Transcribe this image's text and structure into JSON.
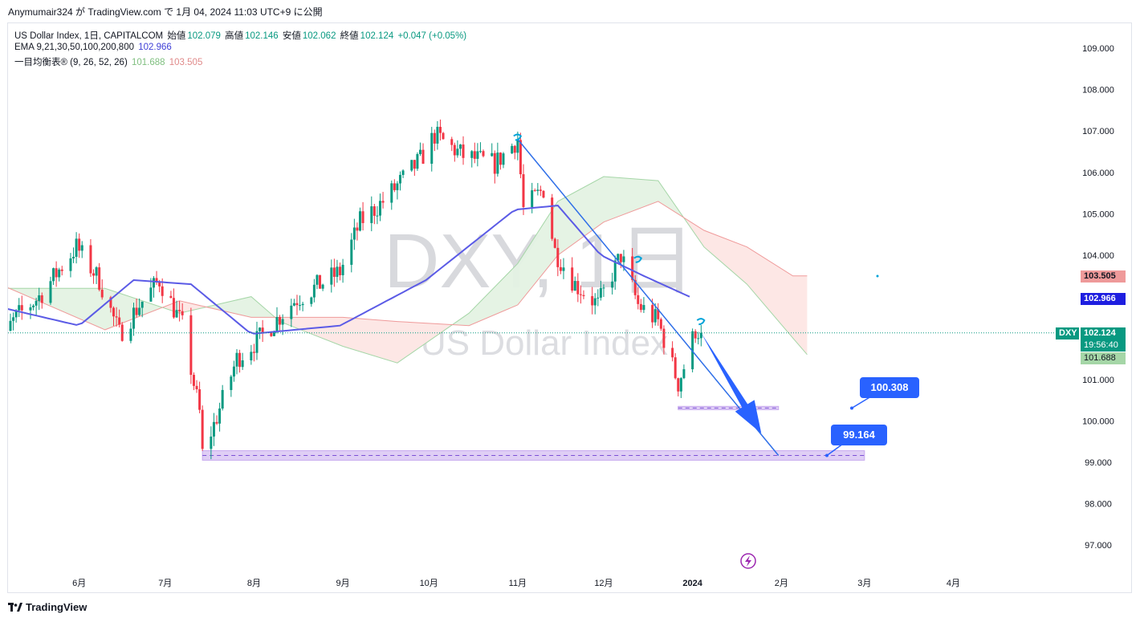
{
  "header": {
    "author_line": "Anymumair324 が TradingView.com で 1月 04, 2024 11:03 UTC+9 に公開"
  },
  "legend": {
    "line1_name": "US Dollar Index, 1日, CAPITALCOM",
    "open_label": "始値",
    "open_value": "102.079",
    "high_label": "高値",
    "high_value": "102.146",
    "low_label": "安値",
    "low_value": "102.062",
    "close_label": "終値",
    "close_value": "102.124",
    "change": "+0.047 (+0.05%)",
    "ema_label": "EMA 9,21,30,50,100,200,800",
    "ema_value": "102.966",
    "ichimoku_label": "一目均衡表® (9, 26, 52, 26)",
    "ichimoku_value1": "101.688",
    "ichimoku_value2": "103.505"
  },
  "watermark": {
    "symbol": "DXY, 1日",
    "name": "US Dollar Index"
  },
  "price_tags": {
    "span_b": "103.505",
    "ema": "102.966",
    "symbol": "DXY",
    "last": "102.124",
    "countdown": "19:56:40",
    "span_a": "101.688"
  },
  "callouts": {
    "upper": "100.308",
    "lower": "99.164"
  },
  "footer": {
    "brand": "TradingView"
  },
  "colors": {
    "up": "#089981",
    "down": "#f23645",
    "ema": "#5b5be6",
    "cloud_bull": "#e4f2e3",
    "cloud_bear": "#fde6e4",
    "callout": "#2962ff",
    "zone": "#d9c5f3"
  },
  "chart_data": {
    "type": "candlestick",
    "y_axis_ticks": [
      109,
      108,
      107,
      106,
      105,
      104,
      101,
      100,
      99,
      98,
      97
    ],
    "y_axis_labels": [
      "109.000",
      "108.000",
      "107.000",
      "106.000",
      "105.000",
      "104.000",
      "101.000",
      "100.000",
      "99.000",
      "98.000",
      "97.000"
    ],
    "x_axis_labels": [
      "6月",
      "7月",
      "8月",
      "9月",
      "10月",
      "11月",
      "12月",
      "2024",
      "2月",
      "3月",
      "4月"
    ],
    "ylim": [
      96.0,
      110.0
    ],
    "close_path": [
      [
        "2023-05-01",
        101.6
      ],
      [
        "2023-05-10",
        102.5
      ],
      [
        "2023-05-18",
        103.0
      ],
      [
        "2023-05-31",
        104.2
      ],
      [
        "2023-06-08",
        103.4
      ],
      [
        "2023-06-15",
        102.1
      ],
      [
        "2023-06-22",
        102.8
      ],
      [
        "2023-06-29",
        103.4
      ],
      [
        "2023-07-07",
        102.3
      ],
      [
        "2023-07-13",
        100.2
      ],
      [
        "2023-07-14",
        99.2
      ],
      [
        "2023-07-18",
        99.9
      ],
      [
        "2023-07-26",
        101.5
      ],
      [
        "2023-08-03",
        102.0
      ],
      [
        "2023-08-15",
        102.9
      ],
      [
        "2023-08-31",
        103.6
      ],
      [
        "2023-09-07",
        104.8
      ],
      [
        "2023-09-15",
        105.3
      ],
      [
        "2023-09-28",
        106.3
      ],
      [
        "2023-10-03",
        106.9
      ],
      [
        "2023-10-13",
        106.4
      ],
      [
        "2023-10-24",
        106.2
      ],
      [
        "2023-11-01",
        106.8
      ],
      [
        "2023-11-03",
        105.1
      ],
      [
        "2023-11-10",
        105.6
      ],
      [
        "2023-11-14",
        104.1
      ],
      [
        "2023-11-21",
        103.3
      ],
      [
        "2023-11-29",
        102.8
      ],
      [
        "2023-12-07",
        104.0
      ],
      [
        "2023-12-13",
        102.8
      ],
      [
        "2023-12-20",
        102.4
      ],
      [
        "2023-12-27",
        100.9
      ],
      [
        "2023-12-29",
        101.3
      ],
      [
        "2024-01-02",
        102.2
      ],
      [
        "2024-01-04",
        102.124
      ]
    ],
    "ema_points": [
      [
        "2023-05-01",
        102.8
      ],
      [
        "2023-06-01",
        102.3
      ],
      [
        "2023-06-20",
        103.4
      ],
      [
        "2023-07-10",
        103.3
      ],
      [
        "2023-07-31",
        102.1
      ],
      [
        "2023-08-31",
        102.3
      ],
      [
        "2023-09-30",
        103.4
      ],
      [
        "2023-10-31",
        105.1
      ],
      [
        "2023-11-15",
        105.2
      ],
      [
        "2023-11-30",
        104.0
      ],
      [
        "2023-12-15",
        103.5
      ],
      [
        "2024-01-01",
        102.966
      ]
    ],
    "cloud": {
      "span_a": [
        [
          "2023-05-01",
          103.2
        ],
        [
          "2023-06-10",
          103.2
        ],
        [
          "2023-07-06",
          102.6
        ],
        [
          "2023-07-31",
          103.0
        ],
        [
          "2023-08-10",
          102.4
        ],
        [
          "2023-09-01",
          101.8
        ],
        [
          "2023-09-20",
          101.4
        ],
        [
          "2023-10-15",
          102.6
        ],
        [
          "2023-11-01",
          103.8
        ],
        [
          "2023-11-15",
          105.3
        ],
        [
          "2023-12-01",
          105.9
        ],
        [
          "2023-12-20",
          105.8
        ],
        [
          "2024-01-05",
          104.2
        ],
        [
          "2024-01-20",
          103.3
        ],
        [
          "2024-02-05",
          102.0
        ],
        [
          "2024-02-10",
          101.6
        ]
      ],
      "span_b": [
        [
          "2023-05-01",
          103.4
        ],
        [
          "2023-06-10",
          102.2
        ],
        [
          "2023-07-06",
          102.9
        ],
        [
          "2023-07-31",
          102.5
        ],
        [
          "2023-08-10",
          102.5
        ],
        [
          "2023-09-01",
          102.5
        ],
        [
          "2023-09-20",
          102.4
        ],
        [
          "2023-10-15",
          102.3
        ],
        [
          "2023-11-01",
          102.8
        ],
        [
          "2023-11-15",
          104.0
        ],
        [
          "2023-12-01",
          104.8
        ],
        [
          "2023-12-20",
          105.3
        ],
        [
          "2024-01-05",
          104.6
        ],
        [
          "2024-01-20",
          104.2
        ],
        [
          "2024-02-05",
          103.5
        ],
        [
          "2024-02-10",
          103.5
        ]
      ]
    },
    "last_price": 102.124,
    "trendline": [
      [
        "2023-11-01",
        106.8
      ],
      [
        "2024-01-31",
        99.164
      ]
    ],
    "support_zones": [
      {
        "from": "2023-07-14",
        "to": "2024-03-01",
        "low": 99.05,
        "high": 99.28,
        "label": "99.164"
      },
      {
        "from": "2023-12-27",
        "to": "2024-01-31",
        "low": 100.27,
        "high": 100.35,
        "label": "100.308"
      }
    ],
    "projection_arrow": [
      [
        "2024-01-04",
        102.124
      ],
      [
        "2024-01-25",
        99.7
      ]
    ]
  }
}
